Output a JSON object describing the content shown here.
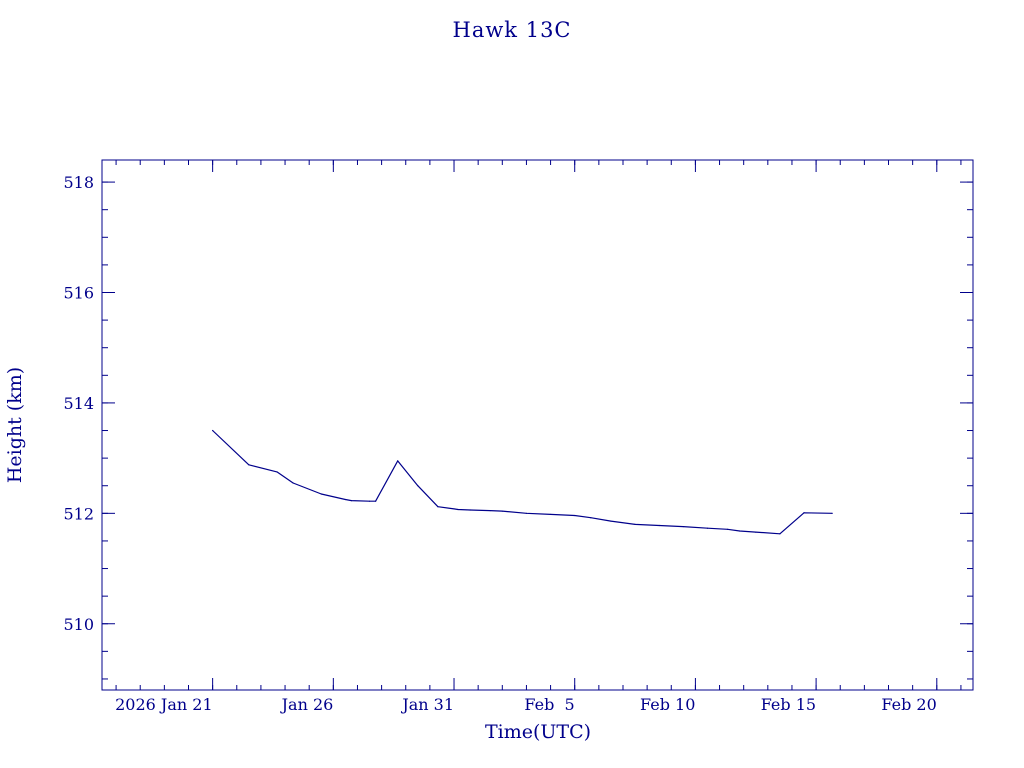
{
  "chart_data": {
    "type": "line",
    "title": "Hawk 13C",
    "xlabel": "Time(UTC)",
    "ylabel": "Height (km)",
    "color": "#00008b",
    "grid": false,
    "legend": "none",
    "xlim": [
      "2026-01-16T10:00",
      "2026-02-21T12:00"
    ],
    "ylim": [
      508.8,
      518.4
    ],
    "x_ticks": [
      {
        "date": "2026-01-21",
        "label": "2026 Jan 21"
      },
      {
        "date": "2026-01-26",
        "label": "Jan 26"
      },
      {
        "date": "2026-01-31",
        "label": "Jan 31"
      },
      {
        "date": "2026-02-05",
        "label": "Feb  5"
      },
      {
        "date": "2026-02-10",
        "label": "Feb 10"
      },
      {
        "date": "2026-02-15",
        "label": "Feb 15"
      },
      {
        "date": "2026-02-20",
        "label": "Feb 20"
      }
    ],
    "y_ticks": [
      510,
      512,
      514,
      516,
      518
    ],
    "series": [
      {
        "x": [
          "2026-01-21T00:00",
          "2026-01-22T12:00",
          "2026-01-23T16:00",
          "2026-01-24T08:00",
          "2026-01-25T12:00",
          "2026-01-26T12:00",
          "2026-01-26T18:00",
          "2026-01-27T12:00",
          "2026-01-27T18:00",
          "2026-01-28T16:00",
          "2026-01-29T12:00",
          "2026-01-30T08:00",
          "2026-01-31T00:00",
          "2026-01-31T04:00",
          "2026-01-31T16:00",
          "2026-02-01T12:00",
          "2026-02-02T00:00",
          "2026-02-03T00:00",
          "2026-02-04T00:00",
          "2026-02-05T00:00",
          "2026-02-05T16:00",
          "2026-02-06T12:00",
          "2026-02-07T12:00",
          "2026-02-08T12:00",
          "2026-02-09T12:00",
          "2026-02-10T12:00",
          "2026-02-11T08:00",
          "2026-02-11T20:00",
          "2026-02-12T12:00",
          "2026-02-13T12:00",
          "2026-02-14T12:00",
          "2026-02-15T16:00"
        ],
        "y": [
          513.5,
          512.88,
          512.75,
          512.55,
          512.35,
          512.25,
          512.23,
          512.22,
          512.22,
          512.95,
          512.5,
          512.12,
          512.08,
          512.07,
          512.06,
          512.05,
          512.04,
          512.0,
          511.98,
          511.96,
          511.92,
          511.86,
          511.8,
          511.78,
          511.76,
          511.73,
          511.71,
          511.68,
          511.66,
          511.63,
          512.01,
          512.0
        ]
      }
    ]
  }
}
